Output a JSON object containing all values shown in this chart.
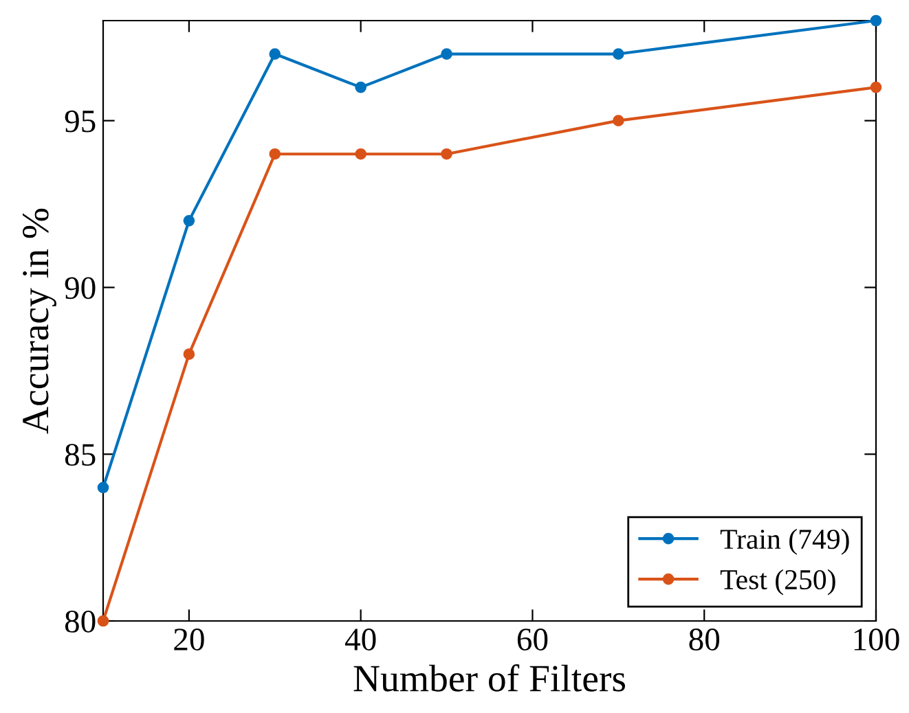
{
  "chart_data": {
    "type": "line",
    "xlabel": "Number of Filters",
    "ylabel": "Accuracy in %",
    "x": [
      10,
      20,
      30,
      40,
      50,
      70,
      100
    ],
    "series": [
      {
        "name": "Train (749)",
        "color": "#0072bd",
        "values": [
          84,
          92,
          97,
          96,
          97,
          97,
          98
        ]
      },
      {
        "name": "Test (250)",
        "color": "#d95319",
        "values": [
          80,
          88,
          94,
          94,
          94,
          95,
          96
        ]
      }
    ],
    "xlim": [
      10,
      100
    ],
    "ylim": [
      80,
      98
    ],
    "xticks": [
      20,
      40,
      60,
      80,
      100
    ],
    "yticks": [
      80,
      85,
      90,
      95
    ],
    "grid": false,
    "legend": "bottom right",
    "marker": "circle",
    "line_style": "solid"
  }
}
